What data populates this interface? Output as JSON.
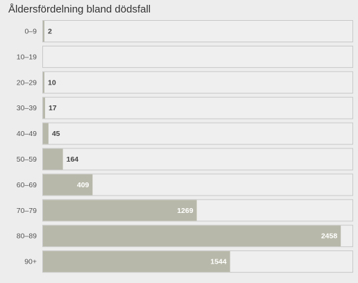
{
  "chart_data": {
    "type": "bar",
    "orientation": "horizontal",
    "title": "Åldersfördelning bland dödsfall",
    "categories": [
      "0–9",
      "10–19",
      "20–29",
      "30–39",
      "40–49",
      "50–59",
      "60–69",
      "70–79",
      "80–89",
      "90+"
    ],
    "values": [
      2,
      0,
      10,
      17,
      45,
      164,
      409,
      1269,
      2458,
      1544
    ],
    "value_labels": [
      "2",
      "",
      "10",
      "17",
      "45",
      "164",
      "409",
      "1269",
      "2458",
      "1544"
    ],
    "xlim": [
      0,
      2560
    ],
    "grid": false,
    "legend": "none",
    "colors": {
      "bar": "#b8b8aa",
      "track": "#efefef",
      "track_border": "#c8c8c8",
      "label_inside": "#ffffff",
      "label_outside": "#444444"
    }
  }
}
